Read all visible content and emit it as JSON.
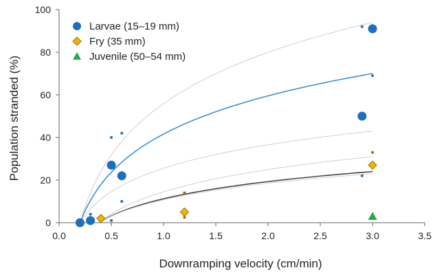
{
  "chart_data": {
    "type": "scatter",
    "xlabel": "Downramping velocity (cm/min)",
    "ylabel": "Population stranded (%)",
    "xlim": [
      0,
      3.5
    ],
    "ylim": [
      0,
      100
    ],
    "x_ticks": [
      "0.0",
      "0.5",
      "1.0",
      "1.5",
      "2.0",
      "2.5",
      "3.0",
      "3.5"
    ],
    "y_ticks": [
      "0",
      "20",
      "40",
      "60",
      "80",
      "100"
    ],
    "grid": false,
    "legend_position": "top-left",
    "series": [
      {
        "name": "Larvae (15–19 mm)",
        "marker": "circle",
        "color": "#1f6fbf",
        "points": [
          {
            "x": 0.2,
            "y": 0
          },
          {
            "x": 0.3,
            "y": 1
          },
          {
            "x": 0.5,
            "y": 27
          },
          {
            "x": 0.6,
            "y": 22
          },
          {
            "x": 2.9,
            "y": 50
          },
          {
            "x": 3.0,
            "y": 91
          }
        ],
        "minor_points": [
          {
            "x": 0.3,
            "y": 4
          },
          {
            "x": 0.5,
            "y": 40
          },
          {
            "x": 0.6,
            "y": 42
          },
          {
            "x": 0.6,
            "y": 10
          },
          {
            "x": 0.5,
            "y": 1
          },
          {
            "x": 2.9,
            "y": 92
          },
          {
            "x": 2.9,
            "y": 22
          },
          {
            "x": 3.0,
            "y": 69
          }
        ]
      },
      {
        "name": "Fry (35 mm)",
        "marker": "diamond",
        "color": "#f0b400",
        "stroke": "#a06a00",
        "points": [
          {
            "x": 0.4,
            "y": 2
          },
          {
            "x": 1.2,
            "y": 5
          },
          {
            "x": 3.0,
            "y": 27
          }
        ],
        "minor_points": [
          {
            "x": 1.2,
            "y": 14
          },
          {
            "x": 1.2,
            "y": 2.5
          },
          {
            "x": 3.0,
            "y": 33
          }
        ]
      },
      {
        "name": "Juvenile (50–54 mm)",
        "marker": "triangle",
        "color": "#22aa44",
        "points": [
          {
            "x": 3.0,
            "y": 3
          }
        ]
      }
    ],
    "fit_curves": [
      {
        "role": "larvae-fit",
        "color": "#3a8fd0",
        "x0": 0.2,
        "x1": 3.0,
        "y_at_x1": 70
      },
      {
        "role": "larvae-upper",
        "color": "#cfcfcf",
        "x0": 0.2,
        "x1": 3.0,
        "y_at_x1": 94
      },
      {
        "role": "larvae-lower",
        "color": "#cfcfcf",
        "x0": 0.2,
        "x1": 3.0,
        "y_at_x1": 43
      },
      {
        "role": "fry-fit",
        "color": "#444444",
        "x0": 0.38,
        "x1": 3.0,
        "y_at_x1": 24
      },
      {
        "role": "fry-upper",
        "color": "#cfcfcf",
        "x0": 0.38,
        "x1": 3.0,
        "y_at_x1": 31
      },
      {
        "role": "fry-lower",
        "color": "#cfcfcf",
        "x0": 0.38,
        "x1": 3.0,
        "y_at_x1": 23
      }
    ]
  }
}
